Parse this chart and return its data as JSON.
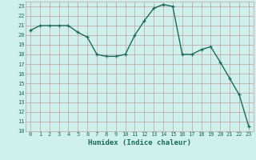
{
  "x": [
    0,
    1,
    2,
    3,
    4,
    5,
    6,
    7,
    8,
    9,
    10,
    11,
    12,
    13,
    14,
    15,
    16,
    17,
    18,
    19,
    20,
    21,
    22,
    23
  ],
  "y": [
    20.5,
    21.0,
    21.0,
    21.0,
    21.0,
    20.3,
    19.8,
    18.0,
    17.8,
    17.8,
    18.0,
    20.0,
    21.5,
    22.8,
    23.2,
    23.0,
    18.0,
    18.0,
    18.5,
    18.8,
    17.2,
    15.5,
    13.8,
    10.5
  ],
  "xlabel": "Humidex (Indice chaleur)",
  "xlim": [
    -0.5,
    23.5
  ],
  "ylim": [
    10,
    23.5
  ],
  "yticks": [
    10,
    11,
    12,
    13,
    14,
    15,
    16,
    17,
    18,
    19,
    20,
    21,
    22,
    23
  ],
  "xticks": [
    0,
    1,
    2,
    3,
    4,
    5,
    6,
    7,
    8,
    9,
    10,
    11,
    12,
    13,
    14,
    15,
    16,
    17,
    18,
    19,
    20,
    21,
    22,
    23
  ],
  "line_color": "#1a6b5a",
  "marker": "+",
  "bg_color": "#cff0ec",
  "grid_color": "#c0a0a0",
  "xlabel_fontsize": 6.5,
  "tick_fontsize": 5.0,
  "line_width": 1.0,
  "marker_size": 3.5,
  "marker_edge_width": 0.9
}
